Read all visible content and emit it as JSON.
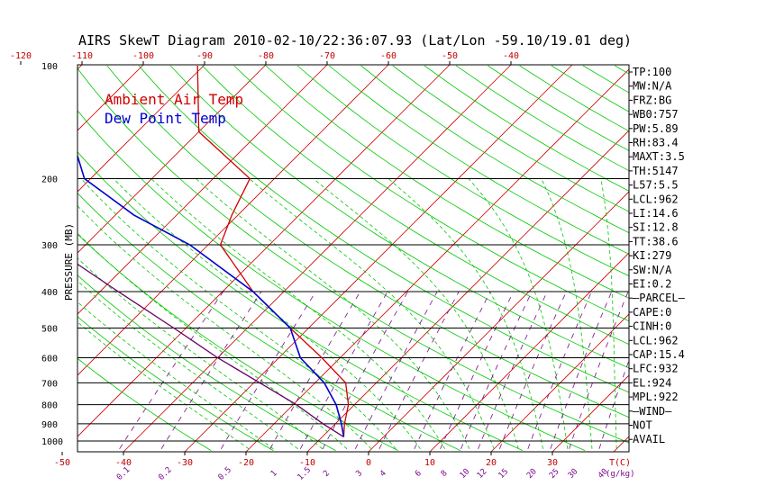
{
  "chart_data": {
    "type": "line",
    "title": "AIRS SkewT Diagram 2010-02-10/22:36:07.93 (Lat/Lon -59.10/19.01 deg)",
    "ylabel": "PRESSURE (MB)",
    "y_scale": "log (pressure)",
    "ylim": [
      1050,
      100
    ],
    "pressure_ticks": [
      "100",
      "200",
      "300",
      "400",
      "500",
      "600",
      "700",
      "800",
      "900",
      "1000"
    ],
    "top_temp_ticks": [
      "-120",
      "-110",
      "-100",
      "-90",
      "-80",
      "-70",
      "-60",
      "-50",
      "-40"
    ],
    "bottom_temp_ticks": [
      "-50",
      "-40",
      "-30",
      "-20",
      "-10",
      "0",
      "10",
      "20",
      "30"
    ],
    "bottom_temp_unit": "T(C)",
    "mixing_ratio_ticks": [
      "0.1",
      "0.2",
      "0.5",
      "1",
      "1.5",
      "2",
      "3",
      "4",
      "6",
      "8",
      "10",
      "12",
      "15",
      "20",
      "25",
      "30",
      "40"
    ],
    "mixing_ratio_unit": "(g/kg)",
    "legend": [
      "Ambient Air Temp",
      "Dew Point Temp"
    ],
    "legend_position": "top-left",
    "grid": true,
    "series": [
      {
        "name": "Ambient Air Temp",
        "color": "#d00000",
        "points": [
          {
            "p": 975,
            "t": -6.5
          },
          {
            "p": 900,
            "t": -8.5
          },
          {
            "p": 800,
            "t": -11
          },
          {
            "p": 700,
            "t": -15
          },
          {
            "p": 600,
            "t": -23
          },
          {
            "p": 500,
            "t": -33
          },
          {
            "p": 400,
            "t": -45
          },
          {
            "p": 300,
            "t": -58
          },
          {
            "p": 250,
            "t": -61
          },
          {
            "p": 200,
            "t": -64
          },
          {
            "p": 150,
            "t": -80
          },
          {
            "p": 100,
            "t": -91
          }
        ]
      },
      {
        "name": "Dew Point Temp",
        "color": "#0000d0",
        "points": [
          {
            "p": 975,
            "t": -6.5
          },
          {
            "p": 900,
            "t": -9
          },
          {
            "p": 800,
            "t": -13
          },
          {
            "p": 700,
            "t": -18.5
          },
          {
            "p": 600,
            "t": -26.5
          },
          {
            "p": 500,
            "t": -33
          },
          {
            "p": 400,
            "t": -45
          },
          {
            "p": 300,
            "t": -63
          },
          {
            "p": 250,
            "t": -77
          },
          {
            "p": 200,
            "t": -91
          },
          {
            "p": 150,
            "t": -101
          },
          {
            "p": 100,
            "t": -116
          }
        ]
      },
      {
        "name": "",
        "color": "#660066",
        "points": [
          {
            "p": 975,
            "t": -6.5
          },
          {
            "p": 900,
            "t": -12
          },
          {
            "p": 800,
            "t": -19.5
          },
          {
            "p": 700,
            "t": -29
          },
          {
            "p": 600,
            "t": -40
          },
          {
            "p": 500,
            "t": -52
          },
          {
            "p": 400,
            "t": -67
          },
          {
            "p": 300,
            "t": -86
          },
          {
            "p": 200,
            "t": -111
          },
          {
            "p": 150,
            "t": -126
          },
          {
            "p": 100,
            "t": -141
          }
        ]
      }
    ]
  },
  "indices": [
    "TP:100",
    "MW:N/A",
    "FRZ:BG",
    "WB0:757",
    "PW:5.89",
    "RH:83.4",
    "MAXT:3.5",
    "TH:5147",
    "L57:5.5",
    "LCL:962",
    "LI:14.6",
    "SI:12.8",
    "TT:38.6",
    "KI:279",
    "SW:N/A",
    "EI:0.2",
    "—PARCEL—",
    "CAPE:0",
    "CINH:0",
    "LCL:962",
    "CAP:15.4",
    "LFC:932",
    "EL:924",
    "MPL:922",
    "—WIND—",
    "NOT",
    "AVAIL"
  ],
  "colors": {
    "isotherm": "#d00000",
    "dry_adiabat": "#00c800",
    "moist_adiabat": "#00c800",
    "mixing_ratio": "#7a0a8a",
    "isobar": "#000000"
  }
}
